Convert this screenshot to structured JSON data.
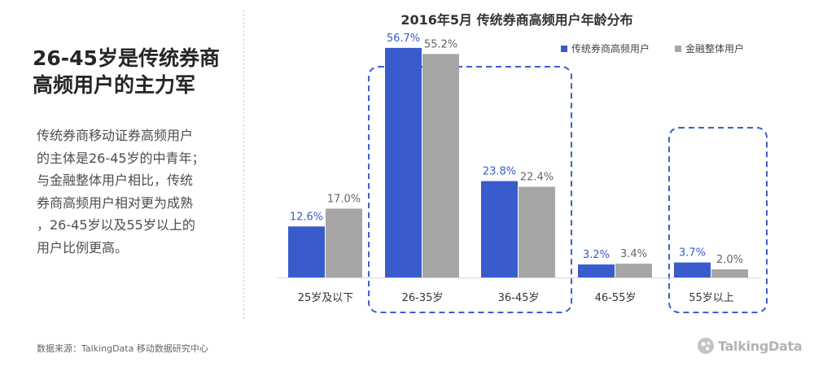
{
  "headline": [
    "26-45岁是传统券商",
    "高频用户的主力军"
  ],
  "body_lines": [
    "传统券商移动证券高频用户",
    "的主体是26-45岁的中青年；",
    "与金融整体用户相比，传统",
    "券商高频用户相对更为成熟",
    "，26-45岁以及55岁以上的",
    "用户比例更高。"
  ],
  "source": "数据来源：TalkingData 移动数据研究中心",
  "logo_text": "TalkingData",
  "colors": {
    "series1": "#3a5bcc",
    "series2": "#a6a6a6",
    "highlight_box": "#3b5fd0"
  },
  "chart_data": {
    "type": "bar",
    "title": "2016年5月  传统券商高频用户年龄分布",
    "categories": [
      "25岁及以下",
      "26-35岁",
      "36-45岁",
      "46-55岁",
      "55岁以上"
    ],
    "series": [
      {
        "name": "传统券商高频用户",
        "values": [
          12.6,
          56.7,
          23.8,
          3.2,
          3.7
        ],
        "labels": [
          "12.6%",
          "56.7%",
          "23.8%",
          "3.2%",
          "3.7%"
        ]
      },
      {
        "name": "金融整体用户",
        "values": [
          17.0,
          55.2,
          22.4,
          3.4,
          2.0
        ],
        "labels": [
          "17.0%",
          "55.2%",
          "22.4%",
          "3.4%",
          "2.0%"
        ]
      }
    ],
    "legend": "top-right",
    "ylim": [
      0,
      60
    ],
    "highlight_groups": [
      [
        "26-35岁",
        "36-45岁"
      ],
      [
        "55岁以上"
      ]
    ]
  }
}
